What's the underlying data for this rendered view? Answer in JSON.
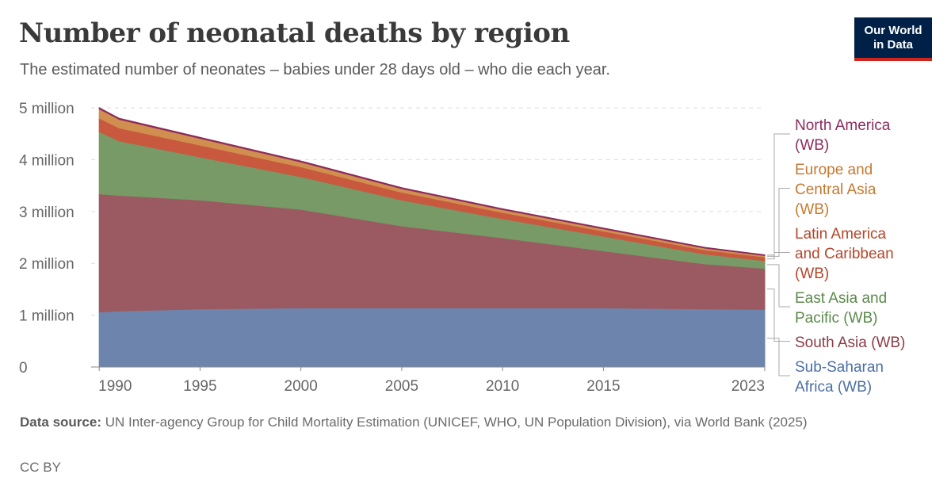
{
  "header": {
    "title": "Number of neonatal deaths by region",
    "subtitle": "The estimated number of neonates – babies under 28 days old – who die each year.",
    "logo_line1": "Our World",
    "logo_line2": "in Data"
  },
  "footer": {
    "source_label": "Data source:",
    "source_text": "UN Inter-agency Group for Child Mortality Estimation (UNICEF, WHO, UN Population Division), via World Bank (2025)",
    "license": "CC BY"
  },
  "chart_data": {
    "type": "area",
    "stacked": true,
    "x": [
      1990,
      1991,
      1995,
      2000,
      2005,
      2010,
      2015,
      2020,
      2023
    ],
    "x_tick_labels": [
      "1990",
      "1995",
      "2000",
      "2005",
      "2010",
      "2015",
      "2023"
    ],
    "x_ticks": [
      1990,
      1995,
      2000,
      2005,
      2010,
      2015,
      2023
    ],
    "y_tick_labels": [
      "0",
      "1 million",
      "2 million",
      "3 million",
      "4 million",
      "5 million"
    ],
    "y_ticks": [
      0,
      1000000,
      2000000,
      3000000,
      4000000,
      5000000
    ],
    "xlim": [
      1989.6,
      2023
    ],
    "ylim": [
      0,
      5000000
    ],
    "grid": true,
    "legend_placement": "right",
    "series": [
      {
        "name": "Sub-Saharan Africa (WB)",
        "color": "#6d85ad",
        "values": [
          1060000,
          1080000,
          1120000,
          1140000,
          1140000,
          1140000,
          1140000,
          1120000,
          1110000
        ]
      },
      {
        "name": "South Asia (WB)",
        "color": "#9b5a61",
        "values": [
          2280000,
          2230000,
          2100000,
          1900000,
          1580000,
          1350000,
          1100000,
          870000,
          790000
        ]
      },
      {
        "name": "East Asia and Pacific (WB)",
        "color": "#779a67",
        "values": [
          1200000,
          1050000,
          830000,
          630000,
          500000,
          370000,
          280000,
          190000,
          150000
        ]
      },
      {
        "name": "Latin America and Caribbean (WB)",
        "color": "#c8593e",
        "values": [
          260000,
          250000,
          230000,
          190000,
          150000,
          120000,
          100000,
          80000,
          70000
        ]
      },
      {
        "name": "Europe and Central Asia (WB)",
        "color": "#d08f4e",
        "values": [
          180000,
          165000,
          130000,
          95000,
          70000,
          55000,
          45000,
          35000,
          30000
        ]
      },
      {
        "name": "North America (WB)",
        "color": "#8d2b5c",
        "values": [
          22000,
          22000,
          21000,
          19000,
          19000,
          18000,
          16000,
          15000,
          15000
        ]
      }
    ],
    "legend": [
      {
        "lines": [
          "North America",
          "(WB)"
        ],
        "color": "#8d2b5c"
      },
      {
        "lines": [
          "Europe and",
          "Central Asia",
          "(WB)"
        ],
        "color": "#c5792f"
      },
      {
        "lines": [
          "Latin America",
          "and Caribbean",
          "(WB)"
        ],
        "color": "#b5462a"
      },
      {
        "lines": [
          "East Asia and",
          "Pacific (WB)"
        ],
        "color": "#5b8a4b"
      },
      {
        "lines": [
          "South Asia (WB)"
        ],
        "color": "#8c3b45"
      },
      {
        "lines": [
          "Sub-Saharan",
          "Africa (WB)"
        ],
        "color": "#4c6fa5"
      }
    ]
  }
}
